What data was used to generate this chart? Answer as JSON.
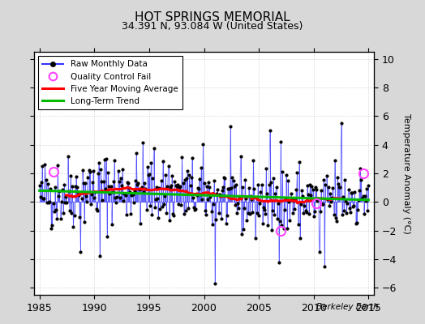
{
  "title": "HOT SPRINGS MEMORIAL",
  "subtitle": "34.391 N, 93.084 W (United States)",
  "ylabel": "Temperature Anomaly (°C)",
  "xlabel_credit": "Berkeley Earth",
  "xlim": [
    1984.5,
    2015.5
  ],
  "ylim": [
    -6.5,
    10.5
  ],
  "yticks": [
    -6,
    -4,
    -2,
    0,
    2,
    4,
    6,
    8,
    10
  ],
  "xticks": [
    1985,
    1990,
    1995,
    2000,
    2005,
    2010,
    2015
  ],
  "bg_color": "#d8d8d8",
  "plot_bg_color": "#ffffff",
  "raw_color": "#3333ff",
  "ma_color": "#ff0000",
  "trend_color": "#00bb00",
  "qc_color": "#ff44ff",
  "seed": 42,
  "qc_points_x": [
    1986.25,
    2007.0,
    2010.25,
    2014.5
  ],
  "qc_points_y": [
    2.1,
    -2.0,
    -0.1,
    2.0
  ]
}
